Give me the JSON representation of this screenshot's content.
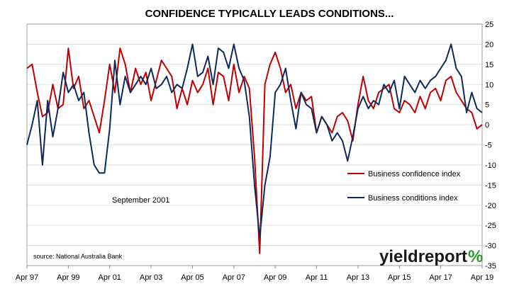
{
  "chart_data": {
    "type": "line",
    "title": "CONFIDENCE TYPICALLY LEADS CONDITIONS...",
    "xlabel": "",
    "ylabel": "",
    "ylim": [
      -35,
      25
    ],
    "yticks": [
      25,
      20,
      15,
      10,
      5,
      0,
      -5,
      -10,
      -15,
      -20,
      -25,
      -30,
      -35
    ],
    "x_tick_labels": [
      "Apr 97",
      "Apr 99",
      "Apr 01",
      "Apr 03",
      "Apr 05",
      "Apr 07",
      "Apr 09",
      "Apr 11",
      "Apr 13",
      "Apr 15",
      "Apr 17",
      "Apr 19"
    ],
    "x": [
      1997.25,
      1997.5,
      1997.75,
      1998.0,
      1998.25,
      1998.5,
      1998.75,
      1999.0,
      1999.25,
      1999.5,
      1999.75,
      2000.0,
      2000.25,
      2000.5,
      2000.75,
      2001.0,
      2001.25,
      2001.5,
      2001.75,
      2002.0,
      2002.25,
      2002.5,
      2002.75,
      2003.0,
      2003.25,
      2003.5,
      2003.75,
      2004.0,
      2004.25,
      2004.5,
      2004.75,
      2005.0,
      2005.25,
      2005.5,
      2005.75,
      2006.0,
      2006.25,
      2006.5,
      2006.75,
      2007.0,
      2007.25,
      2007.5,
      2007.75,
      2008.0,
      2008.25,
      2008.5,
      2008.75,
      2009.0,
      2009.25,
      2009.5,
      2009.75,
      2010.0,
      2010.25,
      2010.5,
      2010.75,
      2011.0,
      2011.25,
      2011.5,
      2011.75,
      2012.0,
      2012.25,
      2012.5,
      2012.75,
      2013.0,
      2013.25,
      2013.5,
      2013.75,
      2014.0,
      2014.25,
      2014.5,
      2014.75,
      2015.0,
      2015.25,
      2015.5,
      2015.75,
      2016.0,
      2016.25,
      2016.5,
      2016.75,
      2017.0,
      2017.25,
      2017.5,
      2017.75,
      2018.0,
      2018.25,
      2018.5,
      2018.75,
      2019.0,
      2019.25
    ],
    "series": [
      {
        "name": "Business confidence index",
        "color": "#c00000",
        "values": [
          14,
          15,
          8,
          2,
          3,
          10,
          4,
          5,
          19,
          9,
          12,
          4,
          6,
          2,
          -2,
          6,
          15,
          8,
          19,
          15,
          8,
          14,
          10,
          13,
          6,
          11,
          16,
          14,
          12,
          4,
          9,
          5,
          11,
          8,
          10,
          14,
          5,
          13,
          12,
          6,
          15,
          8,
          12,
          9,
          -8,
          -32,
          10,
          15,
          18,
          14,
          8,
          10,
          4,
          8,
          6,
          7,
          -2,
          2,
          0,
          -2,
          2,
          3,
          1,
          -4,
          5,
          12,
          6,
          4,
          8,
          9,
          10,
          4,
          3,
          6,
          5,
          3,
          7,
          4,
          8,
          9,
          6,
          11,
          12,
          8,
          6,
          4,
          3,
          -1,
          0
        ]
      },
      {
        "name": "Business conditions index",
        "color": "#0d2a5c",
        "values": [
          -5,
          0,
          6,
          -10,
          6,
          -3,
          4,
          13,
          8,
          10,
          6,
          8,
          -2,
          -10,
          -12,
          -12,
          -1,
          16,
          5,
          12,
          8,
          10,
          12,
          10,
          14,
          9,
          10,
          12,
          8,
          10,
          9,
          14,
          20,
          12,
          13,
          17,
          10,
          19,
          18,
          14,
          20,
          14,
          11,
          2,
          -15,
          -28,
          -15,
          -8,
          8,
          10,
          14,
          6,
          -1,
          8,
          5,
          4,
          -2,
          2,
          0,
          -4,
          -2,
          -4,
          -9,
          -3,
          4,
          7,
          4,
          6,
          5,
          10,
          8,
          11,
          4,
          12,
          10,
          8,
          11,
          9,
          11,
          12,
          14,
          16,
          20,
          14,
          12,
          3,
          8,
          4,
          3
        ]
      }
    ],
    "legend": "right",
    "grid": true,
    "annotations": [
      {
        "text": "September 2001"
      },
      {
        "text": "source: National Australia Bank"
      }
    ],
    "logo": {
      "text": "yieldreport",
      "symbol": "%"
    }
  }
}
